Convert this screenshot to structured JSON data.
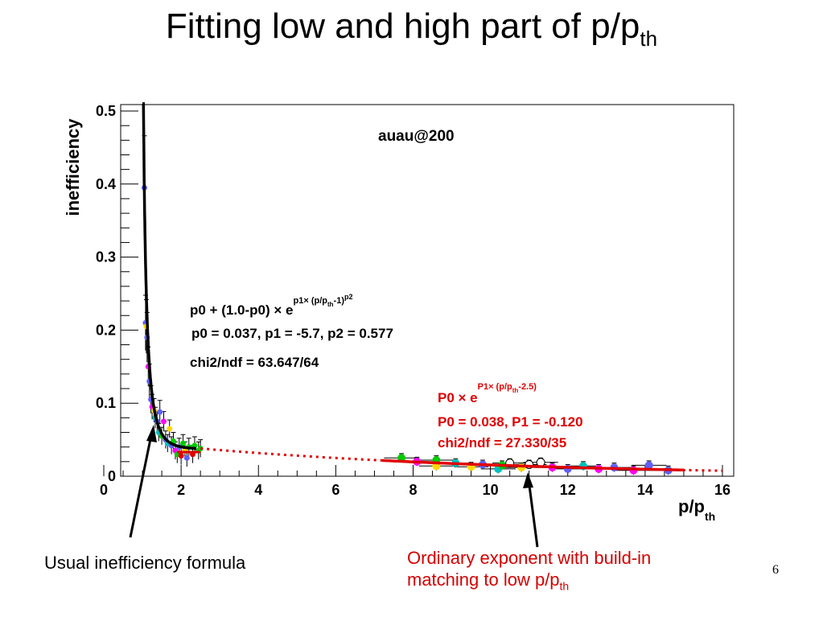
{
  "slide": {
    "title": "Fitting low and high part of p/p",
    "title_sub": "th",
    "page_number": "6"
  },
  "captions": {
    "left": "Usual inefficiency formula",
    "right_line1": "Ordinary exponent with build-in",
    "right_line2": "matching to low p/p",
    "right_sub": "th"
  },
  "colors": {
    "low_fit": "#000000",
    "high_fit": "#e00000",
    "annotation_red": "#e00000"
  },
  "chart_data": {
    "type": "scatter",
    "xlim": [
      0,
      16
    ],
    "ylim": [
      0,
      0.5
    ],
    "xlabel": "p/p",
    "xlabel_sub": "th",
    "ylabel": "inefficiency",
    "x_ticks": [
      "0",
      "2",
      "4",
      "6",
      "8",
      "10",
      "12",
      "14",
      "16"
    ],
    "y_ticks": [
      "0",
      "0.1",
      "0.2",
      "0.3",
      "0.4",
      "0.5"
    ],
    "annotation_label": "auau@200",
    "low_fit": {
      "formula_prefix": "p0 +  (1.0-p0) × e",
      "formula_exp": "p1× (p/p",
      "formula_exp_sub": "th",
      "formula_exp_tail": "-1)",
      "formula_exp_pow": "p2",
      "params": "p0 = 0.037, p1 =   -5.7,  p2 =  0.577",
      "chi2": "chi2/ndf = 63.647/64",
      "p0": 0.037,
      "p1": -5.7,
      "p2": 0.577,
      "x_range": [
        1.0,
        2.4
      ]
    },
    "high_fit": {
      "formula_prefix": "P0 × e",
      "formula_exp": "P1× (p/p",
      "formula_exp_sub": "th",
      "formula_exp_tail": "-2.5)",
      "params": "P0 = 0.038, P1 = -0.120",
      "chi2": "chi2/ndf = 27.330/35",
      "P0": 0.038,
      "P1": -0.12,
      "solid_range": [
        7.2,
        15.0
      ],
      "dotted_range": [
        2.5,
        16.0
      ]
    },
    "points": [
      {
        "x": 1.05,
        "y": 0.395,
        "color": "#6060ff"
      },
      {
        "x": 1.08,
        "y": 0.21,
        "color": "#6060ff"
      },
      {
        "x": 1.1,
        "y": 0.205,
        "color": "#ffd700"
      },
      {
        "x": 1.12,
        "y": 0.19,
        "color": "#6060ff"
      },
      {
        "x": 1.15,
        "y": 0.15,
        "color": "#ff00ff"
      },
      {
        "x": 1.18,
        "y": 0.13,
        "color": "#6060ff"
      },
      {
        "x": 1.22,
        "y": 0.105,
        "color": "#6060ff"
      },
      {
        "x": 1.25,
        "y": 0.095,
        "color": "#ff00ff"
      },
      {
        "x": 1.3,
        "y": 0.09,
        "color": "#ffd700"
      },
      {
        "x": 1.33,
        "y": 0.08,
        "color": "#00c0c0"
      },
      {
        "x": 1.38,
        "y": 0.075,
        "color": "#6060ff"
      },
      {
        "x": 1.42,
        "y": 0.06,
        "color": "#00c0c0"
      },
      {
        "x": 1.45,
        "y": 0.088,
        "color": "#6060ff"
      },
      {
        "x": 1.5,
        "y": 0.055,
        "color": "#00cc00"
      },
      {
        "x": 1.55,
        "y": 0.075,
        "color": "#ff00ff"
      },
      {
        "x": 1.6,
        "y": 0.05,
        "color": "#6060ff"
      },
      {
        "x": 1.65,
        "y": 0.045,
        "color": "#00c0c0"
      },
      {
        "x": 1.7,
        "y": 0.065,
        "color": "#ffd700"
      },
      {
        "x": 1.75,
        "y": 0.042,
        "color": "#6060ff"
      },
      {
        "x": 1.8,
        "y": 0.048,
        "color": "#00cc00"
      },
      {
        "x": 1.85,
        "y": 0.035,
        "color": "#ff00ff"
      },
      {
        "x": 1.9,
        "y": 0.03,
        "color": "#00cc00"
      },
      {
        "x": 1.95,
        "y": 0.04,
        "color": "#6060ff"
      },
      {
        "x": 2.0,
        "y": 0.028,
        "color": "#e00000"
      },
      {
        "x": 2.05,
        "y": 0.045,
        "color": "#00cc00"
      },
      {
        "x": 2.1,
        "y": 0.035,
        "color": "#ffd700"
      },
      {
        "x": 2.15,
        "y": 0.025,
        "color": "#6060ff"
      },
      {
        "x": 2.2,
        "y": 0.04,
        "color": "#00cc00"
      },
      {
        "x": 2.3,
        "y": 0.03,
        "color": "#e00000"
      },
      {
        "x": 2.35,
        "y": 0.042,
        "color": "#00cc00"
      },
      {
        "x": 2.45,
        "y": 0.035,
        "color": "#00cc00"
      },
      {
        "x": 2.5,
        "y": 0.038,
        "color": "#00cc00"
      },
      {
        "x": 7.7,
        "y": 0.025,
        "color": "#00cc00"
      },
      {
        "x": 8.1,
        "y": 0.02,
        "color": "#ff00ff"
      },
      {
        "x": 8.6,
        "y": 0.022,
        "color": "#00cc00"
      },
      {
        "x": 8.6,
        "y": 0.014,
        "color": "#ffd700"
      },
      {
        "x": 9.1,
        "y": 0.018,
        "color": "#00c0c0"
      },
      {
        "x": 9.5,
        "y": 0.013,
        "color": "#ffd700"
      },
      {
        "x": 9.8,
        "y": 0.016,
        "color": "#6060ff"
      },
      {
        "x": 10.2,
        "y": 0.01,
        "color": "#00c0c0"
      },
      {
        "x": 10.3,
        "y": 0.015,
        "color": "#00cc00"
      },
      {
        "x": 10.5,
        "y": 0.018,
        "color": "#ffffff"
      },
      {
        "x": 10.8,
        "y": 0.012,
        "color": "#ffd700"
      },
      {
        "x": 11.0,
        "y": 0.016,
        "color": "#ffffff"
      },
      {
        "x": 11.3,
        "y": 0.019,
        "color": "#ffffff"
      },
      {
        "x": 11.6,
        "y": 0.012,
        "color": "#ff00ff"
      },
      {
        "x": 12.0,
        "y": 0.01,
        "color": "#6060ff"
      },
      {
        "x": 12.4,
        "y": 0.014,
        "color": "#00c0c0"
      },
      {
        "x": 12.8,
        "y": 0.01,
        "color": "#ff00ff"
      },
      {
        "x": 13.2,
        "y": 0.012,
        "color": "#6060ff"
      },
      {
        "x": 13.7,
        "y": 0.008,
        "color": "#ff00ff"
      },
      {
        "x": 14.1,
        "y": 0.015,
        "color": "#6060ff"
      },
      {
        "x": 14.6,
        "y": 0.008,
        "color": "#6060ff"
      }
    ]
  }
}
